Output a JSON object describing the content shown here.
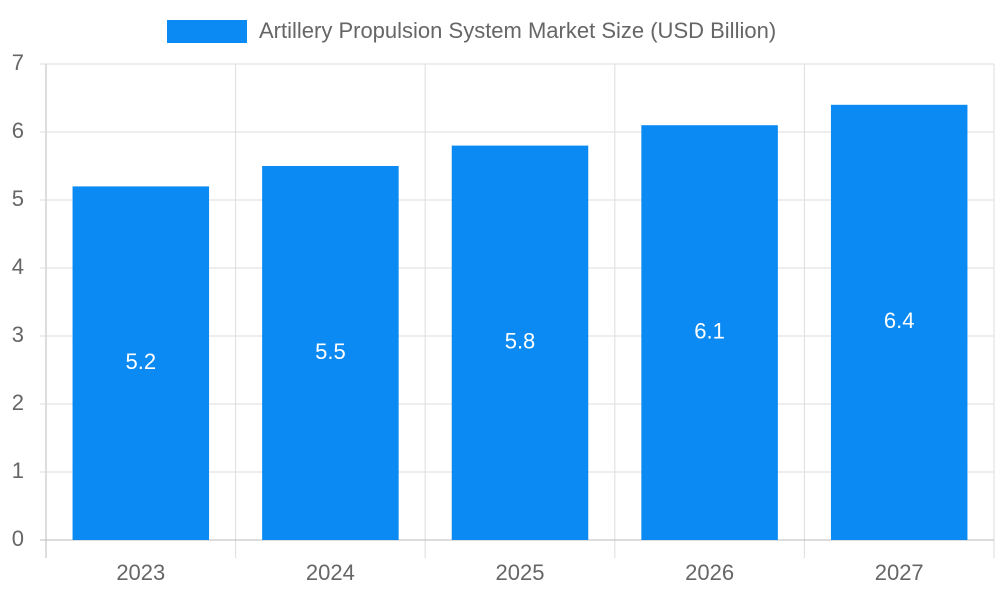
{
  "chart_data": {
    "type": "bar",
    "categories": [
      "2023",
      "2024",
      "2025",
      "2026",
      "2027"
    ],
    "series": [
      {
        "name": "Artillery Propulsion System Market Size (USD Billion)",
        "color": "#0a8af2",
        "values": [
          5.2,
          5.5,
          5.8,
          6.1,
          6.4
        ]
      }
    ],
    "ylim": [
      0,
      7
    ],
    "yticks": [
      0,
      1,
      2,
      3,
      4,
      5,
      6,
      7
    ],
    "grid": true,
    "legend": "top",
    "data_labels": true
  }
}
